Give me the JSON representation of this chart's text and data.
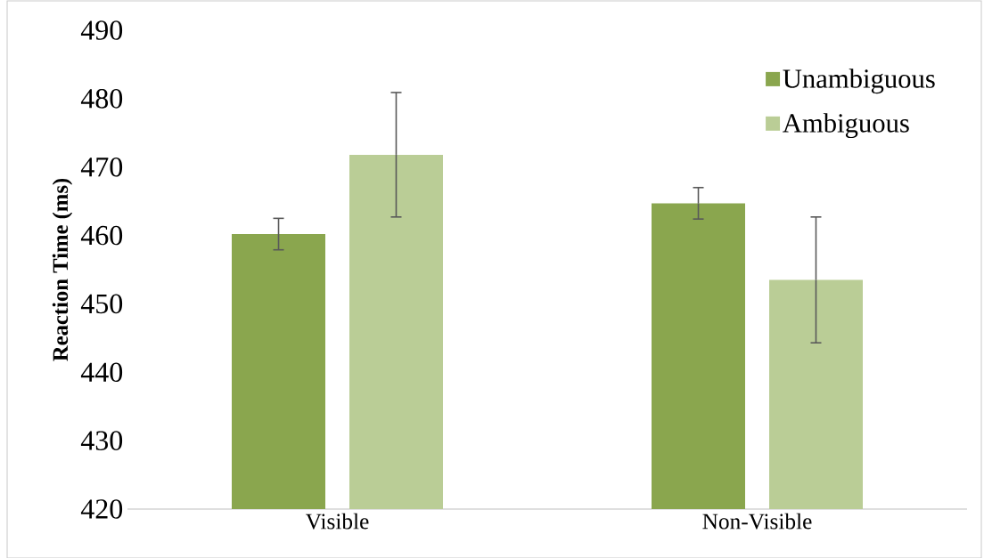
{
  "chart_data": {
    "type": "bar",
    "ylabel": "Reaction Time (ms)",
    "categories": [
      "Visible",
      "Non-Visible"
    ],
    "series": [
      {
        "name": "Unambiguous",
        "color": "#8aa64e",
        "values": [
          460.2,
          464.7
        ],
        "errors": [
          2.3,
          2.3
        ]
      },
      {
        "name": "Ambiguous",
        "color": "#bacd96",
        "values": [
          471.8,
          453.5
        ],
        "errors": [
          9.1,
          9.2
        ]
      }
    ],
    "ylim": [
      420,
      490
    ],
    "yticks": [
      420,
      430,
      440,
      450,
      460,
      470,
      480,
      490
    ],
    "legend": "top right"
  }
}
